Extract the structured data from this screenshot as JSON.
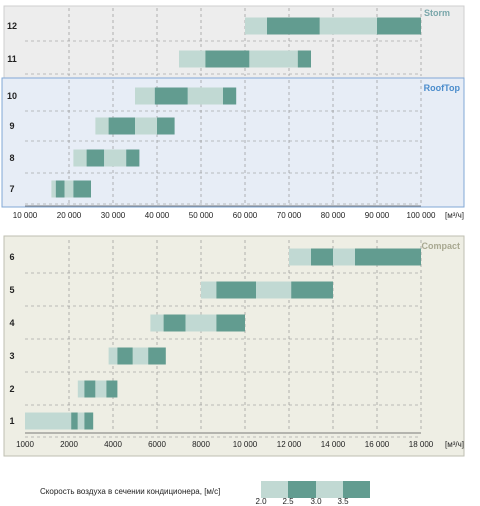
{
  "chart_data": [
    {
      "type": "bar",
      "panel": "Storm",
      "x_unit": "[м³/ч]",
      "rows": [
        {
          "label": "12",
          "segments": [
            [
              60000,
              65000
            ],
            [
              65000,
              77000
            ],
            [
              77000,
              90000
            ],
            [
              90000,
              100000
            ]
          ]
        },
        {
          "label": "11",
          "segments": [
            [
              45000,
              51000
            ],
            [
              51000,
              61000
            ],
            [
              61000,
              72000
            ],
            [
              72000,
              75000
            ]
          ]
        }
      ]
    },
    {
      "type": "bar",
      "panel": "RoofTop",
      "x_unit": "[м³/ч]",
      "xlim": [
        10000,
        100000
      ],
      "ticks": [
        "10 000",
        "20 000",
        "30 000",
        "40 000",
        "50 000",
        "60 000",
        "70 000",
        "80 000",
        "90 000",
        "100 000"
      ],
      "rows": [
        {
          "label": "10",
          "segments": [
            [
              35000,
              39500
            ],
            [
              39500,
              47000
            ],
            [
              47000,
              55000
            ],
            [
              55000,
              58000
            ]
          ]
        },
        {
          "label": "9",
          "segments": [
            [
              26000,
              29000
            ],
            [
              29000,
              35000
            ],
            [
              35000,
              40000
            ],
            [
              40000,
              44000
            ]
          ]
        },
        {
          "label": "8",
          "segments": [
            [
              21000,
              24000
            ],
            [
              24000,
              28000
            ],
            [
              28000,
              33000
            ],
            [
              33000,
              36000
            ]
          ]
        },
        {
          "label": "7",
          "segments": [
            [
              16000,
              17000
            ],
            [
              17000,
              19000
            ],
            [
              19000,
              21000
            ],
            [
              21000,
              25000
            ]
          ]
        }
      ]
    },
    {
      "type": "bar",
      "panel": "Compact",
      "x_unit": "[м³/ч]",
      "xlim": [
        1000,
        18000
      ],
      "ticks": [
        "1000",
        "2000",
        "4000",
        "6000",
        "8000",
        "10 000",
        "12 000",
        "14 000",
        "16 000",
        "18 000"
      ],
      "rows": [
        {
          "label": "6",
          "segments": [
            [
              12000,
              13000
            ],
            [
              13000,
              14000
            ],
            [
              14000,
              15000
            ],
            [
              15000,
              18000
            ]
          ]
        },
        {
          "label": "5",
          "segments": [
            [
              8000,
              8700
            ],
            [
              8700,
              10500
            ],
            [
              10500,
              12100
            ],
            [
              12100,
              14000
            ]
          ]
        },
        {
          "label": "4",
          "segments": [
            [
              5700,
              6300
            ],
            [
              6300,
              7300
            ],
            [
              7300,
              8700
            ],
            [
              8700,
              10000
            ]
          ]
        },
        {
          "label": "3",
          "segments": [
            [
              3800,
              4200
            ],
            [
              4200,
              4900
            ],
            [
              4900,
              5600
            ],
            [
              5600,
              6400
            ]
          ]
        },
        {
          "label": "2",
          "segments": [
            [
              2400,
              2700
            ],
            [
              2700,
              3200
            ],
            [
              3200,
              3700
            ],
            [
              3700,
              4200
            ]
          ]
        },
        {
          "label": "1",
          "segments": [
            [
              1000,
              2100
            ],
            [
              2100,
              2400
            ],
            [
              2400,
              2700
            ],
            [
              2700,
              3100
            ]
          ]
        }
      ]
    }
  ],
  "colors": {
    "light": "#c1d9d3",
    "dark": "#629c90",
    "storm_label": "#7aa7ab",
    "compact_label": "#a8a891",
    "rooftop_label": "#4a8ccc",
    "rooftop_border": "#82a8d6",
    "rooftop_fill": "#e7edf6",
    "storm_fill": "#ededed",
    "compact_fill": "#eeeee4"
  },
  "legend": {
    "title": "Скорость воздуха в сечении кондиционера, [м/с]",
    "values": [
      "2.0",
      "2.5",
      "3.0",
      "3.5"
    ]
  }
}
